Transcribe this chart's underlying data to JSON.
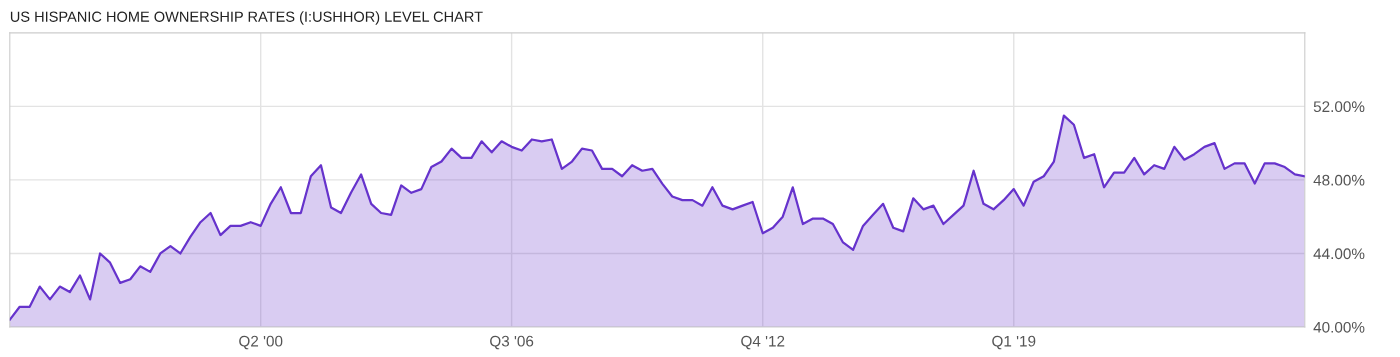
{
  "chart_data": {
    "type": "area",
    "title": "US HISPANIC HOME OWNERSHIP RATES (I:USHHOR) LEVEL CHART",
    "x": [
      "1994-01",
      "1994-04",
      "1994-07",
      "1994-10",
      "1995-01",
      "1995-04",
      "1995-07",
      "1995-10",
      "1996-01",
      "1996-04",
      "1996-07",
      "1996-10",
      "1997-01",
      "1997-04",
      "1997-07",
      "1997-10",
      "1998-01",
      "1998-04",
      "1998-07",
      "1998-10",
      "1999-01",
      "1999-04",
      "1999-07",
      "1999-10",
      "2000-01",
      "2000-04",
      "2000-07",
      "2000-10",
      "2001-01",
      "2001-04",
      "2001-07",
      "2001-10",
      "2002-01",
      "2002-04",
      "2002-07",
      "2002-10",
      "2003-01",
      "2003-04",
      "2003-07",
      "2003-10",
      "2004-01",
      "2004-04",
      "2004-07",
      "2004-10",
      "2005-01",
      "2005-04",
      "2005-07",
      "2005-10",
      "2006-01",
      "2006-04",
      "2006-07",
      "2006-10",
      "2007-01",
      "2007-04",
      "2007-07",
      "2007-10",
      "2008-01",
      "2008-04",
      "2008-07",
      "2008-10",
      "2009-01",
      "2009-04",
      "2009-07",
      "2009-10",
      "2010-01",
      "2010-04",
      "2010-07",
      "2010-10",
      "2011-01",
      "2011-04",
      "2011-07",
      "2011-10",
      "2012-01",
      "2012-04",
      "2012-07",
      "2012-10",
      "2013-01",
      "2013-04",
      "2013-07",
      "2013-10",
      "2014-01",
      "2014-04",
      "2014-07",
      "2014-10",
      "2015-01",
      "2015-04",
      "2015-07",
      "2015-10",
      "2016-01",
      "2016-04",
      "2016-07",
      "2016-10",
      "2017-01",
      "2017-04",
      "2017-07",
      "2017-10",
      "2018-01",
      "2018-04",
      "2018-07",
      "2018-10",
      "2019-01",
      "2019-04",
      "2019-07",
      "2019-10",
      "2020-01",
      "2020-04",
      "2020-07",
      "2020-10",
      "2021-01",
      "2021-04",
      "2021-07",
      "2021-10",
      "2022-01",
      "2022-04",
      "2022-07",
      "2022-10",
      "2023-01",
      "2023-04",
      "2023-07",
      "2023-10",
      "2024-01",
      "2024-04",
      "2024-07",
      "2024-10",
      "2025-01",
      "2025-04",
      "2025-07",
      "2025-10",
      "2026-01",
      "2026-04"
    ],
    "series": [
      {
        "color": "#6633cc",
        "values": [
          40.4,
          41.1,
          41.1,
          42.2,
          41.5,
          42.2,
          41.9,
          42.8,
          41.5,
          44.0,
          43.5,
          42.4,
          42.6,
          43.3,
          43.0,
          44.0,
          44.4,
          44.0,
          44.9,
          45.7,
          46.2,
          45.0,
          45.5,
          45.5,
          45.7,
          45.5,
          46.7,
          47.6,
          46.2,
          46.2,
          48.2,
          48.8,
          46.5,
          46.2,
          47.3,
          48.3,
          46.7,
          46.2,
          46.1,
          47.7,
          47.3,
          47.5,
          48.7,
          49.0,
          49.7,
          49.2,
          49.2,
          50.1,
          49.5,
          50.1,
          49.8,
          49.6,
          50.2,
          50.1,
          50.2,
          48.6,
          49.0,
          49.7,
          49.6,
          48.6,
          48.6,
          48.2,
          48.8,
          48.5,
          48.6,
          47.8,
          47.1,
          46.9,
          46.9,
          46.6,
          47.6,
          46.6,
          46.4,
          46.6,
          46.8,
          45.1,
          45.4,
          46.0,
          47.6,
          45.6,
          45.9,
          45.9,
          45.6,
          44.6,
          44.2,
          45.5,
          46.1,
          46.7,
          45.4,
          45.2,
          47.0,
          46.4,
          46.6,
          45.6,
          46.1,
          46.6,
          48.5,
          46.7,
          46.4,
          46.9,
          47.5,
          46.6,
          47.9,
          48.2,
          49.0,
          51.5,
          51.0,
          49.2,
          49.4,
          47.6,
          48.4,
          48.4,
          49.2,
          48.3,
          48.8,
          48.6,
          49.8,
          49.1,
          49.4,
          49.8,
          50.0,
          48.6,
          48.9,
          48.9,
          47.8,
          48.9,
          48.9,
          48.7,
          48.3,
          48.2
        ]
      }
    ],
    "xlim": [
      "1994-01",
      "2026-04"
    ],
    "xticks": [
      {
        "value": "2000-04",
        "label": "Q2 '00"
      },
      {
        "value": "2006-07",
        "label": "Q3 '06"
      },
      {
        "value": "2012-10",
        "label": "Q4 '12"
      },
      {
        "value": "2019-01",
        "label": "Q1 '19"
      }
    ],
    "ylim": [
      40,
      56
    ],
    "yticks": [
      {
        "value": 40,
        "label": "40.00%"
      },
      {
        "value": 44,
        "label": "44.00%"
      },
      {
        "value": 48,
        "label": "48.00%"
      },
      {
        "value": 52,
        "label": "52.00%"
      }
    ],
    "grid": true
  }
}
